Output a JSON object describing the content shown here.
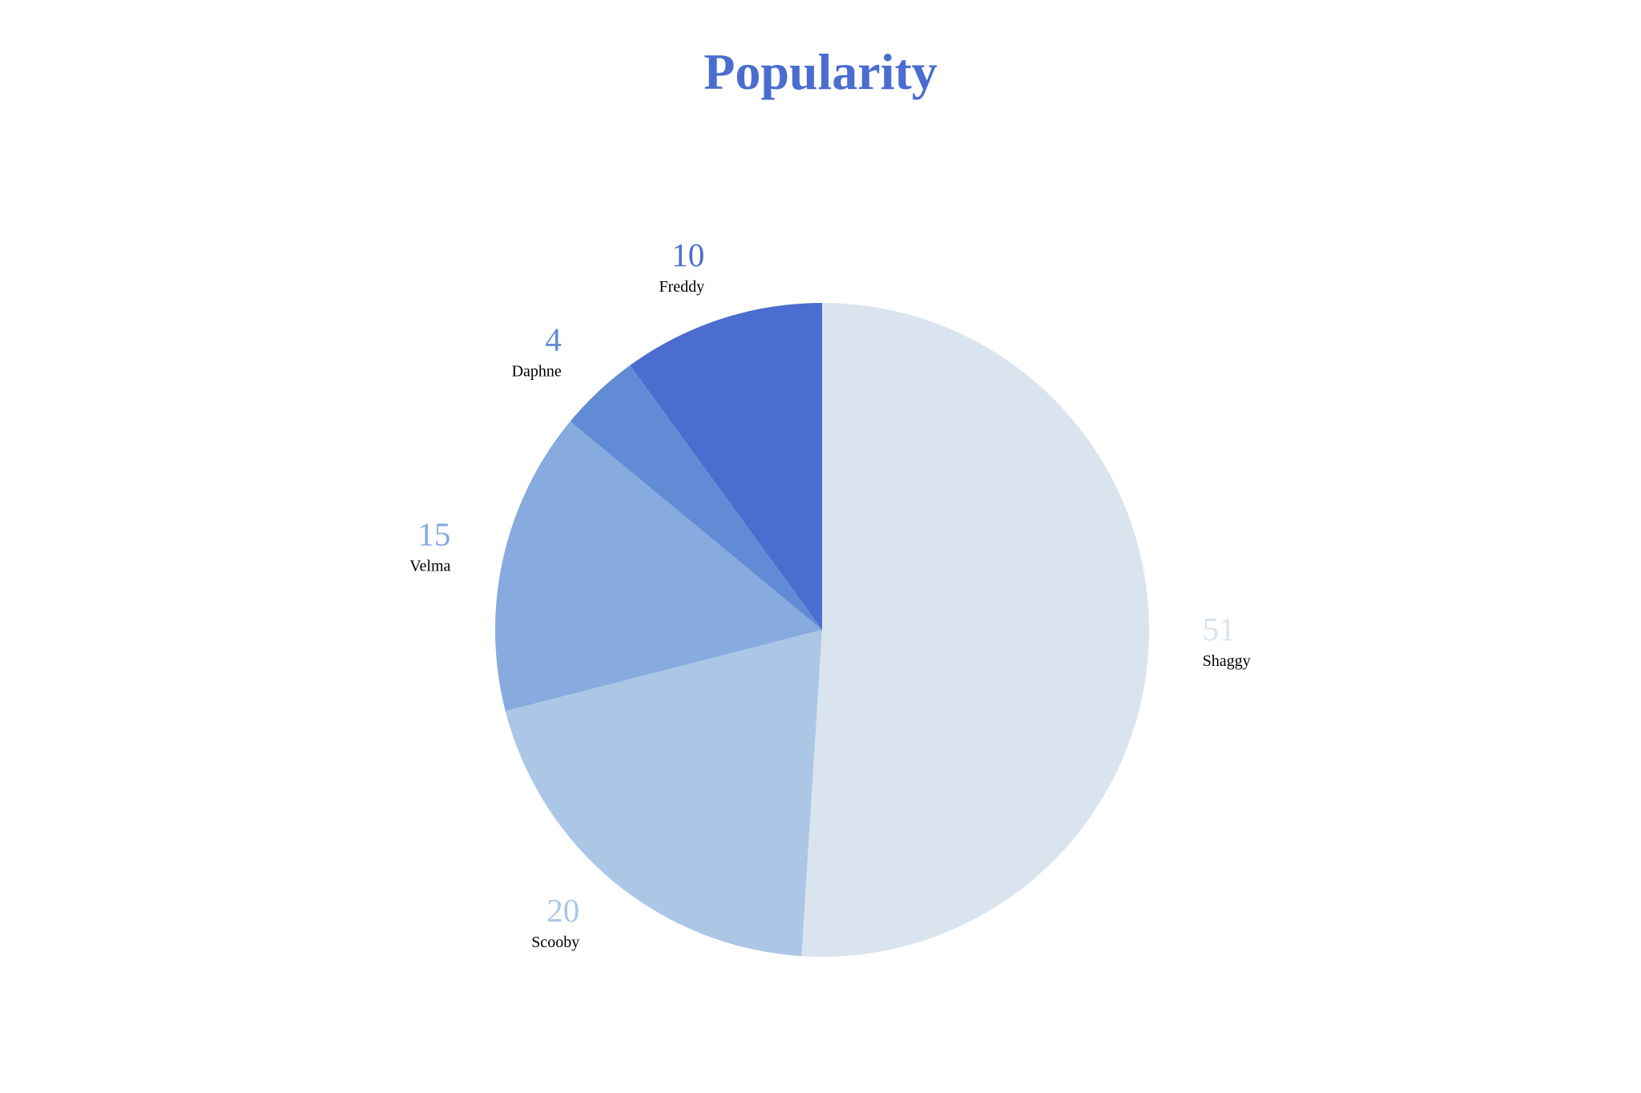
{
  "chart_data": {
    "type": "pie",
    "title": "Popularity",
    "title_color": "#4a6dcf",
    "start_angle_deg": 0,
    "direction": "counterclockwise-from-top",
    "slices": [
      {
        "label": "Freddy",
        "value": 10,
        "color": "#4a6dcf"
      },
      {
        "label": "Daphne",
        "value": 4,
        "color": "#628bd6"
      },
      {
        "label": "Velma",
        "value": 15,
        "color": "#87aadf"
      },
      {
        "label": "Scooby",
        "value": 20,
        "color": "#acc7e6"
      },
      {
        "label": "Shaggy",
        "value": 51,
        "color": "#dae4ee"
      }
    ]
  }
}
